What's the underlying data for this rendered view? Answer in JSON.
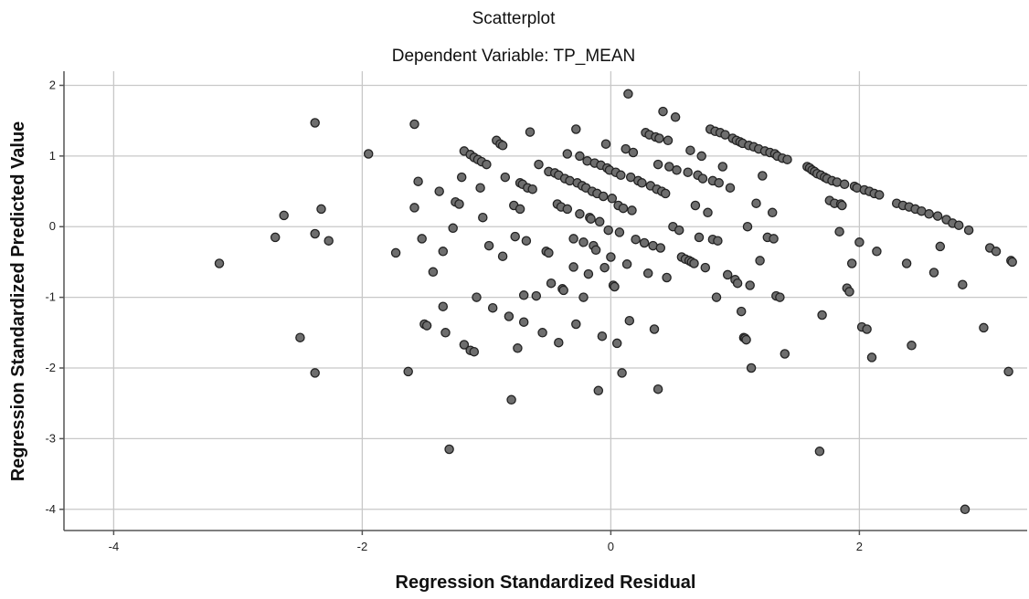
{
  "chart_data": {
    "type": "scatter",
    "title": "Scatterplot",
    "subtitle": "Dependent Variable: TP_MEAN",
    "xlabel": "Regression Standardized Residual",
    "ylabel": "Regression Standardized Predicted Value",
    "xlim": [
      -4.4,
      3.35
    ],
    "ylim": [
      -4.3,
      2.2
    ],
    "xticks": [
      -4,
      -2,
      0,
      2
    ],
    "yticks": [
      2,
      1,
      0,
      -1,
      -2,
      -3,
      -4
    ],
    "xtick_labels": [
      "-4",
      "-2",
      "0",
      "2"
    ],
    "ytick_labels": [
      "2",
      "1",
      "0",
      "-1",
      "-2",
      "-3",
      "-4"
    ],
    "grid": true,
    "point_color": "#6e6e6e",
    "points": [
      [
        -3.15,
        -0.52
      ],
      [
        -2.7,
        -0.15
      ],
      [
        -2.63,
        0.16
      ],
      [
        -2.5,
        -1.57
      ],
      [
        -2.38,
        1.47
      ],
      [
        -2.38,
        -0.1
      ],
      [
        -2.38,
        -2.07
      ],
      [
        -2.33,
        0.25
      ],
      [
        -2.27,
        -0.2
      ],
      [
        -1.95,
        1.03
      ],
      [
        -1.73,
        -0.37
      ],
      [
        -1.63,
        -2.05
      ],
      [
        -1.58,
        1.45
      ],
      [
        -1.58,
        0.27
      ],
      [
        -1.55,
        0.64
      ],
      [
        -1.52,
        -0.17
      ],
      [
        -1.5,
        -1.38
      ],
      [
        -1.48,
        -1.4
      ],
      [
        -1.43,
        -0.64
      ],
      [
        -1.38,
        0.5
      ],
      [
        -1.35,
        -0.35
      ],
      [
        -1.35,
        -1.13
      ],
      [
        -1.33,
        -1.5
      ],
      [
        -1.3,
        -3.15
      ],
      [
        -1.27,
        -0.02
      ],
      [
        -1.25,
        0.35
      ],
      [
        -1.22,
        0.32
      ],
      [
        -1.2,
        0.7
      ],
      [
        -1.18,
        1.07
      ],
      [
        -1.18,
        -1.67
      ],
      [
        -1.13,
        1.02
      ],
      [
        -1.13,
        -1.75
      ],
      [
        -1.1,
        0.98
      ],
      [
        -1.1,
        -1.77
      ],
      [
        -1.08,
        -1.0
      ],
      [
        -1.07,
        0.95
      ],
      [
        -1.05,
        0.55
      ],
      [
        -1.04,
        0.92
      ],
      [
        -1.03,
        0.13
      ],
      [
        -1.0,
        0.88
      ],
      [
        -0.98,
        -0.27
      ],
      [
        -0.95,
        -1.15
      ],
      [
        -0.92,
        1.22
      ],
      [
        -0.89,
        1.17
      ],
      [
        -0.87,
        1.15
      ],
      [
        -0.87,
        -0.42
      ],
      [
        -0.85,
        0.7
      ],
      [
        -0.82,
        -1.27
      ],
      [
        -0.8,
        -2.45
      ],
      [
        -0.78,
        0.3
      ],
      [
        -0.77,
        -0.14
      ],
      [
        -0.75,
        -1.72
      ],
      [
        -0.73,
        0.25
      ],
      [
        -0.73,
        0.62
      ],
      [
        -0.71,
        0.6
      ],
      [
        -0.7,
        -1.35
      ],
      [
        -0.7,
        -0.97
      ],
      [
        -0.68,
        -0.2
      ],
      [
        -0.67,
        0.55
      ],
      [
        -0.65,
        1.34
      ],
      [
        -0.63,
        0.53
      ],
      [
        -0.6,
        -0.98
      ],
      [
        -0.58,
        0.88
      ],
      [
        -0.55,
        -1.5
      ],
      [
        -0.52,
        -0.35
      ],
      [
        -0.5,
        -0.37
      ],
      [
        -0.5,
        0.78
      ],
      [
        -0.48,
        -0.8
      ],
      [
        -0.45,
        0.76
      ],
      [
        -0.43,
        0.32
      ],
      [
        -0.42,
        0.73
      ],
      [
        -0.42,
        -1.64
      ],
      [
        -0.4,
        0.28
      ],
      [
        -0.39,
        -0.88
      ],
      [
        -0.38,
        -0.9
      ],
      [
        -0.37,
        0.68
      ],
      [
        -0.35,
        0.25
      ],
      [
        -0.35,
        1.03
      ],
      [
        -0.33,
        0.65
      ],
      [
        -0.3,
        -0.17
      ],
      [
        -0.3,
        -0.57
      ],
      [
        -0.28,
        -1.38
      ],
      [
        -0.28,
        1.38
      ],
      [
        -0.27,
        0.62
      ],
      [
        -0.25,
        1.0
      ],
      [
        -0.25,
        0.18
      ],
      [
        -0.23,
        0.58
      ],
      [
        -0.22,
        -0.22
      ],
      [
        -0.22,
        -1.0
      ],
      [
        -0.2,
        0.55
      ],
      [
        -0.19,
        0.93
      ],
      [
        -0.18,
        -0.67
      ],
      [
        -0.17,
        0.13
      ],
      [
        -0.16,
        0.11
      ],
      [
        -0.15,
        0.5
      ],
      [
        -0.14,
        -0.27
      ],
      [
        -0.13,
        0.9
      ],
      [
        -0.12,
        -0.33
      ],
      [
        -0.11,
        0.47
      ],
      [
        -0.1,
        -2.32
      ],
      [
        -0.09,
        0.07
      ],
      [
        -0.08,
        0.87
      ],
      [
        -0.07,
        -1.55
      ],
      [
        -0.06,
        0.43
      ],
      [
        -0.05,
        -0.58
      ],
      [
        -0.04,
        1.17
      ],
      [
        -0.03,
        0.83
      ],
      [
        -0.02,
        -0.05
      ],
      [
        -0.01,
        0.8
      ],
      [
        0.0,
        -0.43
      ],
      [
        0.01,
        0.4
      ],
      [
        0.02,
        -0.83
      ],
      [
        0.03,
        -0.85
      ],
      [
        0.04,
        0.77
      ],
      [
        0.05,
        -1.65
      ],
      [
        0.06,
        0.3
      ],
      [
        0.07,
        -0.08
      ],
      [
        0.08,
        0.73
      ],
      [
        0.09,
        -2.07
      ],
      [
        0.1,
        0.26
      ],
      [
        0.12,
        1.1
      ],
      [
        0.13,
        -0.53
      ],
      [
        0.14,
        1.88
      ],
      [
        0.15,
        -1.33
      ],
      [
        0.16,
        0.7
      ],
      [
        0.17,
        0.23
      ],
      [
        0.18,
        1.05
      ],
      [
        0.2,
        -0.18
      ],
      [
        0.22,
        0.65
      ],
      [
        0.25,
        0.62
      ],
      [
        0.27,
        -0.23
      ],
      [
        0.28,
        1.33
      ],
      [
        0.3,
        -0.66
      ],
      [
        0.31,
        1.3
      ],
      [
        0.32,
        0.58
      ],
      [
        0.34,
        -0.27
      ],
      [
        0.35,
        -1.45
      ],
      [
        0.36,
        1.27
      ],
      [
        0.37,
        0.53
      ],
      [
        0.38,
        -2.3
      ],
      [
        0.38,
        0.88
      ],
      [
        0.39,
        1.25
      ],
      [
        0.4,
        -0.3
      ],
      [
        0.41,
        0.5
      ],
      [
        0.42,
        1.63
      ],
      [
        0.44,
        0.47
      ],
      [
        0.45,
        -0.72
      ],
      [
        0.46,
        1.22
      ],
      [
        0.47,
        0.85
      ],
      [
        0.5,
        0.0
      ],
      [
        0.52,
        1.55
      ],
      [
        0.53,
        0.8
      ],
      [
        0.55,
        -0.05
      ],
      [
        0.57,
        -0.43
      ],
      [
        0.6,
        -0.46
      ],
      [
        0.62,
        0.77
      ],
      [
        0.63,
        -0.48
      ],
      [
        0.64,
        1.08
      ],
      [
        0.65,
        -0.5
      ],
      [
        0.67,
        -0.52
      ],
      [
        0.68,
        0.3
      ],
      [
        0.7,
        0.73
      ],
      [
        0.71,
        -0.15
      ],
      [
        0.73,
        1.0
      ],
      [
        0.74,
        0.68
      ],
      [
        0.76,
        -0.58
      ],
      [
        0.78,
        0.2
      ],
      [
        0.8,
        1.38
      ],
      [
        0.82,
        -0.18
      ],
      [
        0.82,
        0.65
      ],
      [
        0.84,
        1.35
      ],
      [
        0.85,
        -1.0
      ],
      [
        0.86,
        -0.2
      ],
      [
        0.87,
        0.62
      ],
      [
        0.88,
        1.33
      ],
      [
        0.9,
        0.85
      ],
      [
        0.92,
        1.3
      ],
      [
        0.94,
        -0.68
      ],
      [
        0.96,
        0.55
      ],
      [
        0.98,
        1.25
      ],
      [
        1.0,
        -0.75
      ],
      [
        1.01,
        1.22
      ],
      [
        1.02,
        -0.8
      ],
      [
        1.04,
        1.2
      ],
      [
        1.05,
        -1.2
      ],
      [
        1.06,
        1.18
      ],
      [
        1.07,
        -1.57
      ],
      [
        1.08,
        -1.58
      ],
      [
        1.09,
        -1.6
      ],
      [
        1.1,
        0.0
      ],
      [
        1.11,
        1.15
      ],
      [
        1.12,
        -0.83
      ],
      [
        1.13,
        -2.0
      ],
      [
        1.15,
        1.13
      ],
      [
        1.17,
        0.33
      ],
      [
        1.19,
        1.1
      ],
      [
        1.2,
        -0.48
      ],
      [
        1.22,
        0.72
      ],
      [
        1.24,
        1.07
      ],
      [
        1.26,
        -0.15
      ],
      [
        1.28,
        1.05
      ],
      [
        1.3,
        0.2
      ],
      [
        1.31,
        -0.17
      ],
      [
        1.32,
        1.03
      ],
      [
        1.33,
        -0.98
      ],
      [
        1.34,
        1.0
      ],
      [
        1.36,
        -1.0
      ],
      [
        1.38,
        0.97
      ],
      [
        1.4,
        -1.8
      ],
      [
        1.42,
        0.95
      ],
      [
        1.58,
        0.85
      ],
      [
        1.6,
        0.83
      ],
      [
        1.62,
        0.8
      ],
      [
        1.64,
        0.78
      ],
      [
        1.66,
        0.75
      ],
      [
        1.68,
        -3.18
      ],
      [
        1.69,
        0.73
      ],
      [
        1.7,
        -1.25
      ],
      [
        1.72,
        0.7
      ],
      [
        1.74,
        0.68
      ],
      [
        1.76,
        0.37
      ],
      [
        1.78,
        0.65
      ],
      [
        1.8,
        0.33
      ],
      [
        1.82,
        0.63
      ],
      [
        1.84,
        -0.07
      ],
      [
        1.85,
        0.32
      ],
      [
        1.86,
        0.3
      ],
      [
        1.88,
        0.6
      ],
      [
        1.9,
        -0.87
      ],
      [
        1.92,
        -0.92
      ],
      [
        1.94,
        -0.52
      ],
      [
        1.96,
        0.57
      ],
      [
        1.98,
        0.55
      ],
      [
        2.0,
        -0.22
      ],
      [
        2.02,
        -1.42
      ],
      [
        2.04,
        0.52
      ],
      [
        2.06,
        -1.45
      ],
      [
        2.08,
        0.5
      ],
      [
        2.1,
        -1.85
      ],
      [
        2.12,
        0.47
      ],
      [
        2.14,
        -0.35
      ],
      [
        2.16,
        0.45
      ],
      [
        2.3,
        0.33
      ],
      [
        2.35,
        0.3
      ],
      [
        2.38,
        -0.52
      ],
      [
        2.4,
        0.28
      ],
      [
        2.42,
        -1.68
      ],
      [
        2.45,
        0.25
      ],
      [
        2.5,
        0.22
      ],
      [
        2.56,
        0.18
      ],
      [
        2.6,
        -0.65
      ],
      [
        2.63,
        0.15
      ],
      [
        2.65,
        -0.28
      ],
      [
        2.7,
        0.1
      ],
      [
        2.75,
        0.05
      ],
      [
        2.8,
        0.02
      ],
      [
        2.83,
        -0.82
      ],
      [
        2.85,
        -4.0
      ],
      [
        2.88,
        -0.05
      ],
      [
        3.0,
        -1.43
      ],
      [
        3.05,
        -0.3
      ],
      [
        3.1,
        -0.35
      ],
      [
        3.2,
        -2.05
      ],
      [
        3.22,
        -0.48
      ],
      [
        3.23,
        -0.5
      ]
    ]
  }
}
